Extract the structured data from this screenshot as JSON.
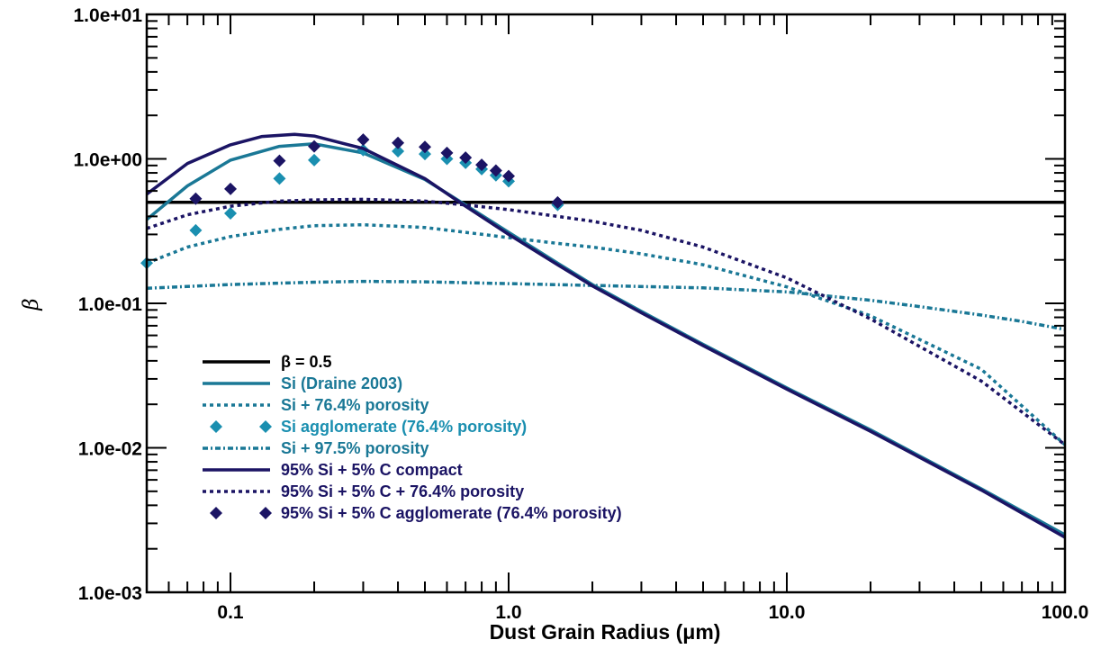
{
  "chart_data": {
    "type": "line",
    "xlabel": "Dust Grain Radius (μm)",
    "ylabel": "β",
    "xscale": "log",
    "yscale": "log",
    "xlim": [
      0.05,
      100
    ],
    "ylim": [
      0.001,
      10
    ],
    "x_tick_labels": [
      {
        "value": 0.1,
        "label": "0.1"
      },
      {
        "value": 1,
        "label": "1.0"
      },
      {
        "value": 10,
        "label": "10.0"
      },
      {
        "value": 100,
        "label": "100.0"
      }
    ],
    "y_tick_labels": [
      {
        "value": 0.001,
        "label": "1.0e-03"
      },
      {
        "value": 0.01,
        "label": "1.0e-02"
      },
      {
        "value": 0.1,
        "label": "1.0e-01"
      },
      {
        "value": 1,
        "label": "1.0e+00"
      },
      {
        "value": 10,
        "label": "1.0e+01"
      }
    ],
    "legend_position": "bottom-left",
    "grid": false,
    "series": [
      {
        "name": "β = 0.5",
        "style": "solid",
        "color": "#000000",
        "x": [
          0.05,
          100
        ],
        "y": [
          0.5,
          0.5
        ]
      },
      {
        "name": "Si  (Draine 2003)",
        "style": "solid",
        "color": "#1a7896",
        "x": [
          0.05,
          0.07,
          0.1,
          0.15,
          0.2,
          0.3,
          0.5,
          0.7,
          1,
          1.5,
          2,
          3,
          5,
          10,
          20,
          50,
          100
        ],
        "y": [
          0.38,
          0.65,
          0.98,
          1.22,
          1.27,
          1.1,
          0.72,
          0.48,
          0.31,
          0.19,
          0.135,
          0.088,
          0.052,
          0.026,
          0.0133,
          0.0052,
          0.0025
        ]
      },
      {
        "name": "Si + 76.4% porosity",
        "style": "dotted",
        "color": "#1a7896",
        "x": [
          0.05,
          0.07,
          0.1,
          0.15,
          0.2,
          0.3,
          0.5,
          0.7,
          1,
          1.5,
          2,
          3,
          5,
          10,
          20,
          50,
          100
        ],
        "y": [
          0.19,
          0.245,
          0.29,
          0.325,
          0.345,
          0.35,
          0.335,
          0.31,
          0.285,
          0.26,
          0.245,
          0.22,
          0.185,
          0.13,
          0.082,
          0.035,
          0.0105
        ]
      },
      {
        "name": "Si agglomerate (76.4% porosity)",
        "style": "markers",
        "marker": "diamond",
        "color": "#1a8fb0",
        "x": [
          0.05,
          0.075,
          0.1,
          0.15,
          0.2,
          0.3,
          0.4,
          0.5,
          0.6,
          0.7,
          0.8,
          0.9,
          1.0,
          1.5
        ],
        "y": [
          0.19,
          0.32,
          0.42,
          0.73,
          0.98,
          1.15,
          1.13,
          1.08,
          1.0,
          0.94,
          0.85,
          0.77,
          0.7,
          0.48
        ]
      },
      {
        "name": "Si + 97.5% porosity",
        "style": "dashdot",
        "color": "#1a7896",
        "x": [
          0.05,
          0.1,
          0.2,
          0.3,
          0.5,
          1,
          2,
          5,
          10,
          20,
          30,
          50,
          70,
          100
        ],
        "y": [
          0.127,
          0.135,
          0.14,
          0.142,
          0.141,
          0.137,
          0.133,
          0.128,
          0.12,
          0.105,
          0.095,
          0.083,
          0.075,
          0.066
        ]
      },
      {
        "name": "95% Si + 5% C compact",
        "style": "solid",
        "color": "#1b1464",
        "x": [
          0.05,
          0.07,
          0.1,
          0.13,
          0.17,
          0.2,
          0.3,
          0.5,
          0.7,
          1,
          1.5,
          2,
          3,
          5,
          10,
          20,
          50,
          100
        ],
        "y": [
          0.57,
          0.93,
          1.25,
          1.43,
          1.48,
          1.44,
          1.18,
          0.73,
          0.47,
          0.3,
          0.185,
          0.132,
          0.086,
          0.051,
          0.0255,
          0.013,
          0.0051,
          0.0024
        ]
      },
      {
        "name": "95% Si + 5% C + 76.4% porosity",
        "style": "dotted",
        "color": "#1b1464",
        "x": [
          0.05,
          0.07,
          0.1,
          0.15,
          0.2,
          0.3,
          0.5,
          0.7,
          1,
          1.5,
          2,
          3,
          5,
          10,
          20,
          50,
          100
        ],
        "y": [
          0.33,
          0.41,
          0.47,
          0.51,
          0.52,
          0.525,
          0.51,
          0.48,
          0.445,
          0.4,
          0.37,
          0.32,
          0.245,
          0.15,
          0.078,
          0.029,
          0.0105
        ]
      },
      {
        "name": "95% Si + 5% C agglomerate (76.4% porosity)",
        "style": "markers",
        "marker": "diamond",
        "color": "#1b1464",
        "x": [
          0.075,
          0.1,
          0.15,
          0.2,
          0.3,
          0.4,
          0.5,
          0.6,
          0.7,
          0.8,
          0.9,
          1.0,
          1.5
        ],
        "y": [
          0.53,
          0.62,
          0.97,
          1.22,
          1.36,
          1.29,
          1.21,
          1.1,
          1.02,
          0.91,
          0.83,
          0.76,
          0.5
        ]
      }
    ]
  }
}
